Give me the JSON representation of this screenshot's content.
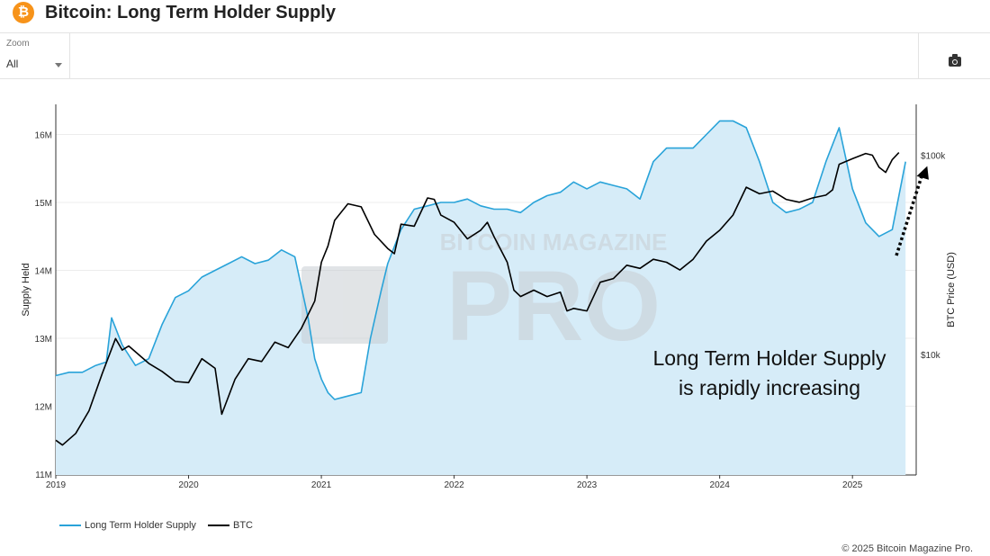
{
  "header": {
    "title": "Bitcoin: Long Term Holder Supply",
    "logo_glyph": "₿",
    "logo_color": "#f7931a"
  },
  "toolbar": {
    "zoom_label": "Zoom",
    "zoom_value": "All",
    "camera_icon": "camera-icon"
  },
  "watermark": {
    "line1": "BITCOIN MAGAZINE",
    "line2": "PRO"
  },
  "annotation": {
    "line1": "Long Term Holder Supply",
    "line2": "is rapidly increasing"
  },
  "legend": [
    {
      "label": "Long Term Holder Supply",
      "color": "#29a3d9"
    },
    {
      "label": "BTC",
      "color": "#000000"
    }
  ],
  "copyright": "© 2025 Bitcoin Magazine Pro.",
  "chart_data": {
    "type": "line",
    "title": "Bitcoin: Long Term Holder Supply",
    "xlabel": "",
    "ylabel": "Supply Held",
    "y2label": "BTC Price (USD)",
    "x_ticks": [
      "2019",
      "2020",
      "2021",
      "2022",
      "2023",
      "2024",
      "2025"
    ],
    "y_ticks": [
      "11M",
      "12M",
      "13M",
      "14M",
      "15M",
      "16M"
    ],
    "y2_ticks": [
      "$10k",
      "$100k"
    ],
    "ylim": [
      11.0,
      16.5
    ],
    "y2_scale": "log",
    "y2lim": [
      2500,
      180000
    ],
    "grid": true,
    "legend_position": "bottom-left",
    "series": [
      {
        "name": "Long Term Holder Supply",
        "color": "#29a3d9",
        "fill": "#d6ecf8",
        "x": [
          2019.0,
          2019.1,
          2019.2,
          2019.3,
          2019.38,
          2019.42,
          2019.5,
          2019.6,
          2019.7,
          2019.8,
          2019.9,
          2020.0,
          2020.1,
          2020.2,
          2020.3,
          2020.4,
          2020.5,
          2020.6,
          2020.7,
          2020.8,
          2020.9,
          2020.95,
          2021.0,
          2021.05,
          2021.1,
          2021.2,
          2021.3,
          2021.37,
          2021.45,
          2021.5,
          2021.6,
          2021.7,
          2021.8,
          2021.9,
          2022.0,
          2022.1,
          2022.2,
          2022.3,
          2022.4,
          2022.5,
          2022.6,
          2022.7,
          2022.8,
          2022.9,
          2023.0,
          2023.1,
          2023.2,
          2023.3,
          2023.4,
          2023.5,
          2023.6,
          2023.7,
          2023.8,
          2023.9,
          2024.0,
          2024.1,
          2024.2,
          2024.3,
          2024.4,
          2024.5,
          2024.6,
          2024.7,
          2024.8,
          2024.9,
          2025.0,
          2025.1,
          2025.2,
          2025.3,
          2025.4
        ],
        "values": [
          12.45,
          12.5,
          12.5,
          12.6,
          12.65,
          13.3,
          12.9,
          12.6,
          12.7,
          13.2,
          13.6,
          13.7,
          13.9,
          14.0,
          14.1,
          14.2,
          14.1,
          14.15,
          14.3,
          14.2,
          13.3,
          12.7,
          12.4,
          12.2,
          12.1,
          12.15,
          12.2,
          13.0,
          13.7,
          14.1,
          14.6,
          14.9,
          14.95,
          15.0,
          15.0,
          15.05,
          14.95,
          14.9,
          14.9,
          14.85,
          15.0,
          15.1,
          15.15,
          15.3,
          15.2,
          15.3,
          15.25,
          15.2,
          15.05,
          15.6,
          15.8,
          15.8,
          15.8,
          16.0,
          16.2,
          16.2,
          16.1,
          15.6,
          15.0,
          14.85,
          14.9,
          15.0,
          15.6,
          16.1,
          15.2,
          14.7,
          14.5,
          14.6,
          15.6
        ]
      },
      {
        "name": "BTC",
        "color": "#000000",
        "x": [
          2019.0,
          2019.05,
          2019.15,
          2019.25,
          2019.35,
          2019.45,
          2019.5,
          2019.55,
          2019.7,
          2019.8,
          2019.9,
          2020.0,
          2020.1,
          2020.2,
          2020.25,
          2020.35,
          2020.45,
          2020.55,
          2020.65,
          2020.75,
          2020.85,
          2020.95,
          2021.0,
          2021.05,
          2021.1,
          2021.2,
          2021.3,
          2021.4,
          2021.5,
          2021.55,
          2021.6,
          2021.7,
          2021.8,
          2021.85,
          2021.9,
          2022.0,
          2022.1,
          2022.2,
          2022.25,
          2022.3,
          2022.4,
          2022.45,
          2022.5,
          2022.6,
          2022.7,
          2022.8,
          2022.85,
          2022.9,
          2023.0,
          2023.1,
          2023.2,
          2023.3,
          2023.4,
          2023.5,
          2023.6,
          2023.7,
          2023.8,
          2023.9,
          2024.0,
          2024.1,
          2024.2,
          2024.3,
          2024.4,
          2024.5,
          2024.6,
          2024.7,
          2024.8,
          2024.85,
          2024.9,
          2025.0,
          2025.1,
          2025.15,
          2025.2,
          2025.25,
          2025.3,
          2025.35
        ],
        "values": [
          3700,
          3500,
          4000,
          5200,
          8000,
          12000,
          10500,
          11000,
          9000,
          8200,
          7300,
          7200,
          9500,
          8500,
          5000,
          7500,
          9500,
          9200,
          11500,
          10800,
          13500,
          18500,
          29000,
          35000,
          47000,
          57000,
          55000,
          40000,
          34000,
          32000,
          45000,
          44000,
          61000,
          60000,
          50000,
          46000,
          38000,
          42000,
          46000,
          39000,
          29000,
          21000,
          19500,
          21000,
          19500,
          20500,
          16500,
          17000,
          16500,
          23000,
          24000,
          28000,
          27000,
          30000,
          29000,
          26500,
          30000,
          37000,
          42000,
          50000,
          69000,
          64000,
          66000,
          60000,
          58000,
          61000,
          63000,
          67000,
          90000,
          96000,
          102000,
          100000,
          87000,
          82000,
          95000,
          103000
        ]
      }
    ]
  }
}
